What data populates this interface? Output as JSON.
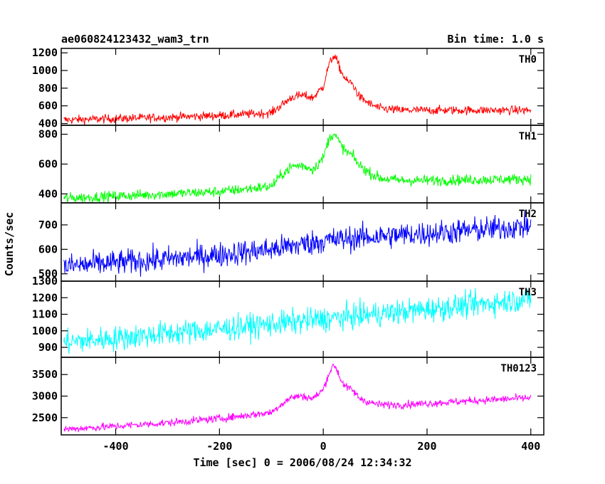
{
  "chart_data": {
    "type": "line",
    "title": "ae060824123432_wam3_trn",
    "subtitle": "Bin time: 1.0 s",
    "xlabel": "Time [sec] 0 = 2006/08/24 12:34:32",
    "ylabel": "Counts/sec",
    "xlim": [
      -505,
      425
    ],
    "x_ticks": [
      -400,
      -200,
      0,
      200,
      400
    ],
    "grid": false,
    "panels": [
      {
        "name": "TH0",
        "color": "#ff0000",
        "ylim": [
          380,
          1250
        ],
        "y_ticks": [
          400,
          600,
          800,
          1000,
          1200
        ],
        "noise": 25,
        "x": [
          -500,
          -400,
          -300,
          -200,
          -100,
          -80,
          -60,
          -40,
          -20,
          0,
          10,
          20,
          25,
          35,
          45,
          55,
          70,
          90,
          110,
          150,
          200,
          300,
          400
        ],
        "y": [
          440,
          455,
          470,
          490,
          520,
          610,
          700,
          720,
          690,
          820,
          1050,
          1170,
          1130,
          980,
          880,
          860,
          700,
          620,
          570,
          550,
          550,
          550,
          550
        ]
      },
      {
        "name": "TH1",
        "color": "#00ff00",
        "ylim": [
          340,
          860
        ],
        "y_ticks": [
          400,
          600,
          800
        ],
        "noise": 18,
        "x": [
          -500,
          -400,
          -300,
          -200,
          -100,
          -80,
          -60,
          -40,
          -20,
          0,
          10,
          20,
          25,
          35,
          45,
          55,
          70,
          90,
          110,
          150,
          200,
          300,
          400
        ],
        "y": [
          370,
          385,
          400,
          415,
          450,
          530,
          585,
          590,
          565,
          640,
          760,
          810,
          780,
          720,
          680,
          660,
          590,
          540,
          505,
          490,
          490,
          495,
          500
        ]
      },
      {
        "name": "TH2",
        "color": "#0000ff",
        "ylim": [
          470,
          790
        ],
        "y_ticks": [
          500,
          600,
          700
        ],
        "noise": 26,
        "x": [
          -500,
          -400,
          -300,
          -200,
          -100,
          0,
          100,
          200,
          300,
          400
        ],
        "y": [
          530,
          545,
          560,
          578,
          600,
          635,
          652,
          665,
          680,
          695
        ]
      },
      {
        "name": "TH3",
        "color": "#00ffff",
        "ylim": [
          840,
          1300
        ],
        "y_ticks": [
          900,
          1000,
          1100,
          1200,
          1300
        ],
        "noise": 38,
        "x": [
          -500,
          -400,
          -300,
          -200,
          -100,
          0,
          100,
          200,
          300,
          400
        ],
        "y": [
          930,
          955,
          985,
          1010,
          1040,
          1070,
          1100,
          1130,
          1160,
          1195
        ]
      },
      {
        "name": "TH0123",
        "color": "#ff00ff",
        "ylim": [
          2100,
          3900
        ],
        "y_ticks": [
          2500,
          3000,
          3500
        ],
        "noise": 45,
        "x": [
          -500,
          -400,
          -300,
          -200,
          -100,
          -80,
          -60,
          -40,
          -20,
          0,
          10,
          20,
          25,
          35,
          45,
          55,
          70,
          90,
          110,
          150,
          200,
          300,
          400
        ],
        "y": [
          2230,
          2300,
          2380,
          2480,
          2620,
          2820,
          2980,
          3000,
          2940,
          3150,
          3500,
          3720,
          3650,
          3350,
          3200,
          3150,
          2950,
          2850,
          2800,
          2800,
          2830,
          2900,
          2960
        ]
      }
    ]
  }
}
